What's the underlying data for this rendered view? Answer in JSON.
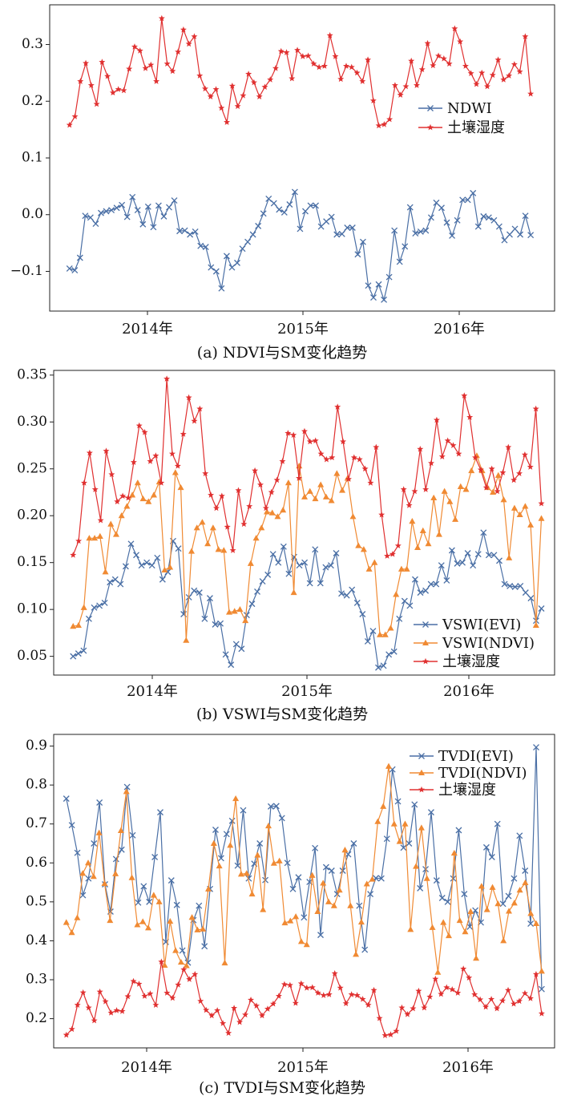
{
  "chart_data": [
    {
      "type": "line",
      "caption": "(a) NDVI与SM变化趋势",
      "x_ticks": [
        "2014年",
        "2015年",
        "2016年"
      ],
      "ylim": [
        -0.17,
        0.37
      ],
      "y_ticks": [
        "−0.1",
        "0.0",
        "0.1",
        "0.2",
        "0.3"
      ],
      "legend_position": "right",
      "series": [
        {
          "name": "NDWI",
          "color": "#4a6fa5",
          "marker": "x",
          "values": [
            -0.095,
            -0.098,
            -0.076,
            -0.002,
            -0.005,
            -0.016,
            0.003,
            0.006,
            0.008,
            0.012,
            0.017,
            -0.004,
            0.031,
            0.008,
            -0.017,
            0.014,
            -0.022,
            0.016,
            -0.003,
            0.013,
            0.025,
            -0.029,
            -0.028,
            -0.035,
            -0.03,
            -0.055,
            -0.057,
            -0.093,
            -0.1,
            -0.13,
            -0.073,
            -0.093,
            -0.085,
            -0.06,
            -0.048,
            -0.035,
            -0.02,
            0.002,
            0.028,
            0.02,
            0.009,
            0.004,
            0.018,
            0.04,
            -0.025,
            0.006,
            0.016,
            0.016,
            -0.021,
            -0.012,
            -0.004,
            -0.035,
            -0.034,
            -0.023,
            -0.023,
            -0.07,
            -0.048,
            -0.125,
            -0.146,
            -0.123,
            -0.15,
            -0.11,
            -0.028,
            -0.083,
            -0.056,
            0.013,
            -0.033,
            -0.03,
            -0.028,
            -0.005,
            0.021,
            0.012,
            -0.014,
            -0.037,
            -0.01,
            0.026,
            0.026,
            0.038,
            -0.021,
            -0.003,
            -0.005,
            -0.01,
            -0.021,
            -0.045,
            -0.035,
            -0.025,
            -0.035,
            -0.002,
            -0.036
          ]
        },
        {
          "name": "土壤湿度",
          "color": "#e03030",
          "marker": "star",
          "values": [
            0.158,
            0.173,
            0.235,
            0.267,
            0.228,
            0.195,
            0.269,
            0.244,
            0.215,
            0.221,
            0.219,
            0.257,
            0.296,
            0.289,
            0.258,
            0.264,
            0.235,
            0.346,
            0.266,
            0.253,
            0.287,
            0.326,
            0.301,
            0.314,
            0.245,
            0.222,
            0.208,
            0.221,
            0.188,
            0.163,
            0.227,
            0.191,
            0.21,
            0.248,
            0.233,
            0.208,
            0.225,
            0.238,
            0.258,
            0.288,
            0.286,
            0.24,
            0.29,
            0.279,
            0.28,
            0.266,
            0.26,
            0.262,
            0.316,
            0.279,
            0.239,
            0.262,
            0.26,
            0.25,
            0.235,
            0.273,
            0.201,
            0.157,
            0.159,
            0.168,
            0.228,
            0.211,
            0.226,
            0.271,
            0.228,
            0.256,
            0.302,
            0.263,
            0.28,
            0.275,
            0.266,
            0.328,
            0.305,
            0.262,
            0.249,
            0.23,
            0.25,
            0.226,
            0.246,
            0.273,
            0.238,
            0.245,
            0.265,
            0.252,
            0.314,
            0.213
          ]
        }
      ]
    },
    {
      "type": "line",
      "caption": "(b) VSWI与SM变化趋势",
      "x_ticks": [
        "2014年",
        "2015年",
        "2016年"
      ],
      "ylim": [
        0.03,
        0.355
      ],
      "y_ticks": [
        "0.05",
        "0.10",
        "0.15",
        "0.20",
        "0.25",
        "0.30",
        "0.35"
      ],
      "legend_position": "bottom-right",
      "series": [
        {
          "name": "VSWI(EVI)",
          "color": "#4a6fa5",
          "marker": "x",
          "values": [
            0.05,
            0.053,
            0.056,
            0.09,
            0.102,
            0.104,
            0.107,
            0.129,
            0.132,
            0.127,
            0.146,
            0.17,
            0.158,
            0.147,
            0.15,
            0.147,
            0.155,
            0.132,
            0.14,
            0.173,
            0.165,
            0.095,
            0.113,
            0.12,
            0.118,
            0.09,
            0.112,
            0.084,
            0.085,
            0.052,
            0.041,
            0.063,
            0.058,
            0.094,
            0.106,
            0.119,
            0.13,
            0.137,
            0.159,
            0.15,
            0.167,
            0.138,
            0.156,
            0.147,
            0.15,
            0.128,
            0.164,
            0.128,
            0.145,
            0.147,
            0.16,
            0.117,
            0.115,
            0.121,
            0.107,
            0.095,
            0.066,
            0.077,
            0.038,
            0.04,
            0.052,
            0.055,
            0.09,
            0.109,
            0.104,
            0.132,
            0.118,
            0.12,
            0.127,
            0.127,
            0.147,
            0.131,
            0.163,
            0.149,
            0.15,
            0.16,
            0.147,
            0.159,
            0.182,
            0.158,
            0.158,
            0.152,
            0.127,
            0.125,
            0.124,
            0.125,
            0.118,
            0.112,
            0.088,
            0.101
          ]
        },
        {
          "name": "VSWI(NDVI)",
          "color": "#f08a33",
          "marker": "triangle",
          "values": [
            0.082,
            0.083,
            0.102,
            0.176,
            0.176,
            0.178,
            0.14,
            0.191,
            0.18,
            0.2,
            0.21,
            0.222,
            0.235,
            0.218,
            0.215,
            0.222,
            0.236,
            0.142,
            0.145,
            0.246,
            0.23,
            0.067,
            0.162,
            0.187,
            0.193,
            0.17,
            0.187,
            0.164,
            0.163,
            0.097,
            0.098,
            0.1,
            0.088,
            0.149,
            0.176,
            0.187,
            0.204,
            0.203,
            0.199,
            0.206,
            0.235,
            0.118,
            0.253,
            0.22,
            0.226,
            0.218,
            0.233,
            0.22,
            0.216,
            0.245,
            0.227,
            0.24,
            0.199,
            0.168,
            0.164,
            0.143,
            0.15,
            0.073,
            0.073,
            0.08,
            0.116,
            0.143,
            0.143,
            0.194,
            0.166,
            0.184,
            0.17,
            0.219,
            0.18,
            0.226,
            0.215,
            0.196,
            0.231,
            0.228,
            0.248,
            0.264,
            0.248,
            0.23,
            0.225,
            0.243,
            0.217,
            0.155,
            0.208,
            0.201,
            0.21,
            0.19,
            0.083,
            0.197
          ]
        },
        {
          "name": "土壤湿度",
          "color": "#e03030",
          "marker": "star",
          "values": [
            0.158,
            0.173,
            0.235,
            0.267,
            0.228,
            0.195,
            0.269,
            0.244,
            0.215,
            0.221,
            0.219,
            0.257,
            0.296,
            0.289,
            0.258,
            0.264,
            0.235,
            0.346,
            0.266,
            0.253,
            0.287,
            0.326,
            0.301,
            0.314,
            0.245,
            0.222,
            0.208,
            0.221,
            0.188,
            0.163,
            0.227,
            0.191,
            0.21,
            0.248,
            0.233,
            0.208,
            0.225,
            0.238,
            0.258,
            0.288,
            0.286,
            0.24,
            0.29,
            0.279,
            0.28,
            0.266,
            0.26,
            0.262,
            0.316,
            0.279,
            0.239,
            0.262,
            0.26,
            0.25,
            0.235,
            0.273,
            0.201,
            0.157,
            0.159,
            0.168,
            0.228,
            0.211,
            0.226,
            0.271,
            0.228,
            0.256,
            0.302,
            0.263,
            0.28,
            0.275,
            0.266,
            0.328,
            0.305,
            0.262,
            0.249,
            0.23,
            0.25,
            0.226,
            0.246,
            0.273,
            0.238,
            0.245,
            0.265,
            0.252,
            0.314,
            0.213
          ]
        }
      ]
    },
    {
      "type": "line",
      "caption": "(c) TVDI与SM变化趋势",
      "x_ticks": [
        "2014年",
        "2015年",
        "2016年"
      ],
      "ylim": [
        0.125,
        0.93
      ],
      "y_ticks": [
        "0.2",
        "0.3",
        "0.4",
        "0.5",
        "0.6",
        "0.7",
        "0.8",
        "0.9"
      ],
      "legend_position": "top-right",
      "series": [
        {
          "name": "TVDI(EVI)",
          "color": "#4a6fa5",
          "marker": "x",
          "values": [
            0.765,
            0.697,
            0.626,
            0.517,
            0.56,
            0.65,
            0.755,
            0.545,
            0.475,
            0.61,
            0.634,
            0.795,
            0.671,
            0.498,
            0.54,
            0.5,
            0.615,
            0.73,
            0.397,
            0.555,
            0.492,
            0.375,
            0.344,
            0.453,
            0.49,
            0.386,
            0.533,
            0.685,
            0.612,
            0.674,
            0.708,
            0.593,
            0.735,
            0.56,
            0.598,
            0.65,
            0.556,
            0.745,
            0.746,
            0.715,
            0.6,
            0.533,
            0.563,
            0.46,
            0.551,
            0.638,
            0.415,
            0.589,
            0.58,
            0.52,
            0.58,
            0.622,
            0.65,
            0.49,
            0.377,
            0.52,
            0.561,
            0.56,
            0.662,
            0.84,
            0.758,
            0.639,
            0.65,
            0.75,
            0.535,
            0.584,
            0.73,
            0.555,
            0.51,
            0.5,
            0.56,
            0.684,
            0.52,
            0.436,
            0.478,
            0.447,
            0.64,
            0.615,
            0.7,
            0.495,
            0.515,
            0.56,
            0.67,
            0.58,
            0.444,
            0.897,
            0.276
          ]
        },
        {
          "name": "TVDI(NDVI)",
          "color": "#f08a33",
          "marker": "triangle",
          "values": [
            0.447,
            0.421,
            0.459,
            0.573,
            0.6,
            0.565,
            0.677,
            0.547,
            0.452,
            0.572,
            0.683,
            0.783,
            0.562,
            0.441,
            0.449,
            0.433,
            0.517,
            0.5,
            0.337,
            0.45,
            0.375,
            0.345,
            0.336,
            0.46,
            0.428,
            0.43,
            0.533,
            0.65,
            0.592,
            0.343,
            0.645,
            0.765,
            0.571,
            0.573,
            0.52,
            0.62,
            0.48,
            0.695,
            0.599,
            0.605,
            0.446,
            0.451,
            0.462,
            0.398,
            0.39,
            0.568,
            0.475,
            0.548,
            0.5,
            0.49,
            0.53,
            0.633,
            0.49,
            0.365,
            0.448,
            0.546,
            0.558,
            0.706,
            0.745,
            0.848,
            0.7,
            0.655,
            0.7,
            0.429,
            0.591,
            0.69,
            0.56,
            0.434,
            0.319,
            0.447,
            0.413,
            0.625,
            0.452,
            0.423,
            0.475,
            0.355,
            0.54,
            0.48,
            0.537,
            0.495,
            0.4,
            0.476,
            0.497,
            0.53,
            0.549,
            0.47,
            0.444,
            0.322
          ]
        },
        {
          "name": "土壤湿度",
          "color": "#e03030",
          "marker": "star",
          "values": [
            0.158,
            0.173,
            0.235,
            0.267,
            0.228,
            0.195,
            0.269,
            0.244,
            0.215,
            0.221,
            0.219,
            0.257,
            0.296,
            0.289,
            0.258,
            0.264,
            0.235,
            0.346,
            0.266,
            0.253,
            0.287,
            0.326,
            0.301,
            0.314,
            0.245,
            0.222,
            0.208,
            0.221,
            0.188,
            0.163,
            0.227,
            0.191,
            0.21,
            0.248,
            0.233,
            0.208,
            0.225,
            0.238,
            0.258,
            0.288,
            0.286,
            0.24,
            0.29,
            0.279,
            0.28,
            0.266,
            0.26,
            0.262,
            0.316,
            0.279,
            0.239,
            0.262,
            0.26,
            0.25,
            0.235,
            0.273,
            0.201,
            0.157,
            0.159,
            0.168,
            0.228,
            0.211,
            0.226,
            0.271,
            0.228,
            0.256,
            0.302,
            0.263,
            0.28,
            0.275,
            0.266,
            0.328,
            0.305,
            0.262,
            0.249,
            0.23,
            0.25,
            0.226,
            0.246,
            0.273,
            0.238,
            0.245,
            0.265,
            0.252,
            0.314,
            0.213
          ]
        }
      ]
    }
  ]
}
